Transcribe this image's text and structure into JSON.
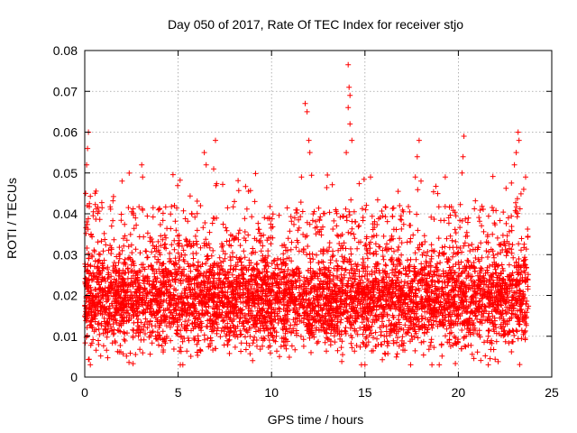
{
  "chart_data": {
    "type": "scatter",
    "title": "Day 050 of 2017, Rate Of TEC Index for receiver stjo",
    "xlabel": "GPS time / hours",
    "ylabel": "ROTI / TECUs",
    "xlim": [
      0,
      25
    ],
    "ylim": [
      0,
      0.08
    ],
    "grid": true,
    "x_ticks": [
      "0",
      "5",
      "10",
      "15",
      "20",
      "25"
    ],
    "y_ticks": [
      "0",
      "0.01",
      "0.02",
      "0.03",
      "0.04",
      "0.05",
      "0.06",
      "0.07",
      "0.08"
    ],
    "marker": "+",
    "color": "#ff0000",
    "data_range_hours": [
      0,
      23.75
    ],
    "approx_baseline_band": [
      0.008,
      0.03
    ],
    "notable_points": [
      {
        "x": 0.2,
        "y": 0.06
      },
      {
        "x": 0.15,
        "y": 0.056
      },
      {
        "x": 0.1,
        "y": 0.052
      },
      {
        "x": 0.05,
        "y": 0.045
      },
      {
        "x": 2.0,
        "y": 0.048
      },
      {
        "x": 3.05,
        "y": 0.052
      },
      {
        "x": 3.1,
        "y": 0.049
      },
      {
        "x": 6.4,
        "y": 0.055
      },
      {
        "x": 6.5,
        "y": 0.052
      },
      {
        "x": 7.0,
        "y": 0.058
      },
      {
        "x": 6.9,
        "y": 0.051
      },
      {
        "x": 11.8,
        "y": 0.067
      },
      {
        "x": 11.9,
        "y": 0.065
      },
      {
        "x": 12.0,
        "y": 0.058
      },
      {
        "x": 12.05,
        "y": 0.055
      },
      {
        "x": 11.6,
        "y": 0.049
      },
      {
        "x": 14.1,
        "y": 0.0765
      },
      {
        "x": 14.15,
        "y": 0.071
      },
      {
        "x": 14.2,
        "y": 0.069
      },
      {
        "x": 14.1,
        "y": 0.066
      },
      {
        "x": 14.2,
        "y": 0.062
      },
      {
        "x": 14.3,
        "y": 0.058
      },
      {
        "x": 14.0,
        "y": 0.055
      },
      {
        "x": 15.3,
        "y": 0.049
      },
      {
        "x": 17.9,
        "y": 0.058
      },
      {
        "x": 17.8,
        "y": 0.054
      },
      {
        "x": 17.7,
        "y": 0.049
      },
      {
        "x": 20.3,
        "y": 0.059
      },
      {
        "x": 20.25,
        "y": 0.054
      },
      {
        "x": 20.2,
        "y": 0.05
      },
      {
        "x": 19.3,
        "y": 0.049
      },
      {
        "x": 23.2,
        "y": 0.06
      },
      {
        "x": 23.25,
        "y": 0.058
      },
      {
        "x": 23.1,
        "y": 0.055
      },
      {
        "x": 23.0,
        "y": 0.052
      },
      {
        "x": 23.6,
        "y": 0.049
      },
      {
        "x": 23.5,
        "y": 0.046
      },
      {
        "x": 9.1,
        "y": 0.043
      },
      {
        "x": 4.8,
        "y": 0.042
      },
      {
        "x": 0.3,
        "y": 0.003
      },
      {
        "x": 15.0,
        "y": 0.003
      },
      {
        "x": 21.6,
        "y": 0.003
      }
    ]
  }
}
